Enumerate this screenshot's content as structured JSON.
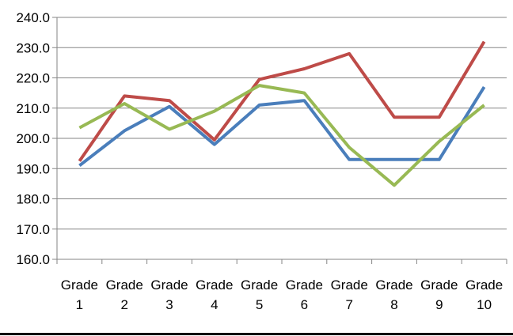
{
  "chart_data": {
    "type": "line",
    "categories": [
      [
        "Grade",
        "1"
      ],
      [
        "Grade",
        "2"
      ],
      [
        "Grade",
        "3"
      ],
      [
        "Grade",
        "4"
      ],
      [
        "Grade",
        "5"
      ],
      [
        "Grade",
        "6"
      ],
      [
        "Grade",
        "7"
      ],
      [
        "Grade",
        "8"
      ],
      [
        "Grade",
        "9"
      ],
      [
        "Grade",
        "10"
      ]
    ],
    "y_ticks": [
      "160.0",
      "170.0",
      "180.0",
      "190.0",
      "200.0",
      "210.0",
      "220.0",
      "230.0",
      "240.0"
    ],
    "ylim": [
      160,
      240
    ],
    "grid": true,
    "title": "",
    "xlabel": "",
    "ylabel": "",
    "series": [
      {
        "color": "#4a7ebb",
        "values": [
          191,
          202.5,
          210.5,
          198,
          211,
          212.5,
          193,
          193,
          193,
          217
        ]
      },
      {
        "color": "#be4b48",
        "values": [
          192.5,
          214,
          212.5,
          199.5,
          219.5,
          223,
          228,
          207,
          207,
          232
        ]
      },
      {
        "color": "#98b954",
        "values": [
          203.5,
          211.5,
          203,
          209,
          217.5,
          215,
          197,
          184.5,
          199,
          211
        ]
      }
    ]
  }
}
